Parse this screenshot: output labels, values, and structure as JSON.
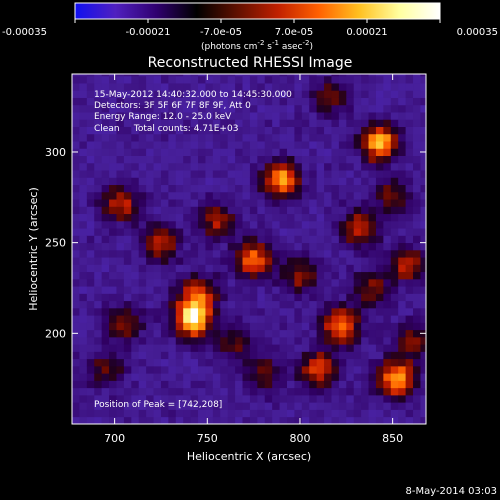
{
  "colorbar": {
    "ticks": [
      "-0.00035",
      "-0.00021",
      "-7.0e-05",
      "7.0e-05",
      "0.00021",
      "0.00035"
    ],
    "units": {
      "main": "(photons cm",
      "sup1": "-2",
      "mid": " s",
      "sup2": "-1",
      "tail": " asec",
      "sup3": "-2",
      "close": ")"
    },
    "range": [
      -0.00035,
      0.00035
    ],
    "palette": [
      "#1010f0",
      "#5020c0",
      "#300070",
      "#000000",
      "#601000",
      "#c02000",
      "#ff6000",
      "#ffc020",
      "#ffffa0",
      "#ffffff"
    ]
  },
  "chart_data": {
    "type": "heatmap",
    "title": "Reconstructed RHESSI Image",
    "xlabel": "Heliocentric X (arcsec)",
    "ylabel": "Heliocentric Y (arcsec)",
    "xlim": [
      677,
      868
    ],
    "ylim": [
      150,
      343
    ],
    "x_ticks": [
      {
        "value": 700,
        "label": "700"
      },
      {
        "value": 750,
        "label": "750"
      },
      {
        "value": 800,
        "label": "800"
      },
      {
        "value": 850,
        "label": "850"
      }
    ],
    "y_ticks": [
      {
        "value": 200,
        "label": "200"
      },
      {
        "value": 250,
        "label": "250"
      },
      {
        "value": 300,
        "label": "300"
      }
    ],
    "annotations": [
      "15-May-2012 14:40:32.000 to 14:45:30.000",
      "Detectors: 3F 5F 6F 7F 8F 9F, Att 0",
      "Energy Range: 12.0 - 25.0 keV",
      "Clean     Total counts: 4.71E+03"
    ],
    "peak_label": "Position of Peak = [742,208]",
    "peak": [
      742,
      208
    ],
    "sources": [
      {
        "x": 742,
        "y": 208,
        "peak": 0.00035
      },
      {
        "x": 775,
        "y": 241,
        "peak": 0.00024
      },
      {
        "x": 790,
        "y": 285,
        "peak": 0.00027
      },
      {
        "x": 843,
        "y": 305,
        "peak": 0.0003
      },
      {
        "x": 852,
        "y": 175,
        "peak": 0.00029
      },
      {
        "x": 822,
        "y": 204,
        "peak": 0.00026
      },
      {
        "x": 810,
        "y": 180,
        "peak": 0.00022
      },
      {
        "x": 703,
        "y": 272,
        "peak": 0.00019
      },
      {
        "x": 725,
        "y": 250,
        "peak": 0.00018
      },
      {
        "x": 755,
        "y": 262,
        "peak": 0.00016
      },
      {
        "x": 745,
        "y": 222,
        "peak": 0.00021
      },
      {
        "x": 705,
        "y": 205,
        "peak": 0.00015
      },
      {
        "x": 780,
        "y": 178,
        "peak": 0.00014
      },
      {
        "x": 832,
        "y": 258,
        "peak": 0.00019
      },
      {
        "x": 800,
        "y": 232,
        "peak": 0.00016
      },
      {
        "x": 858,
        "y": 238,
        "peak": 0.00017
      },
      {
        "x": 862,
        "y": 196,
        "peak": 0.00015
      },
      {
        "x": 815,
        "y": 330,
        "peak": 0.00014
      },
      {
        "x": 695,
        "y": 180,
        "peak": 0.00012
      },
      {
        "x": 765,
        "y": 195,
        "peak": 0.00012
      },
      {
        "x": 850,
        "y": 275,
        "peak": 0.00013
      },
      {
        "x": 838,
        "y": 225,
        "peak": 0.00014
      }
    ]
  },
  "timestamp": "8-May-2014 03:03"
}
